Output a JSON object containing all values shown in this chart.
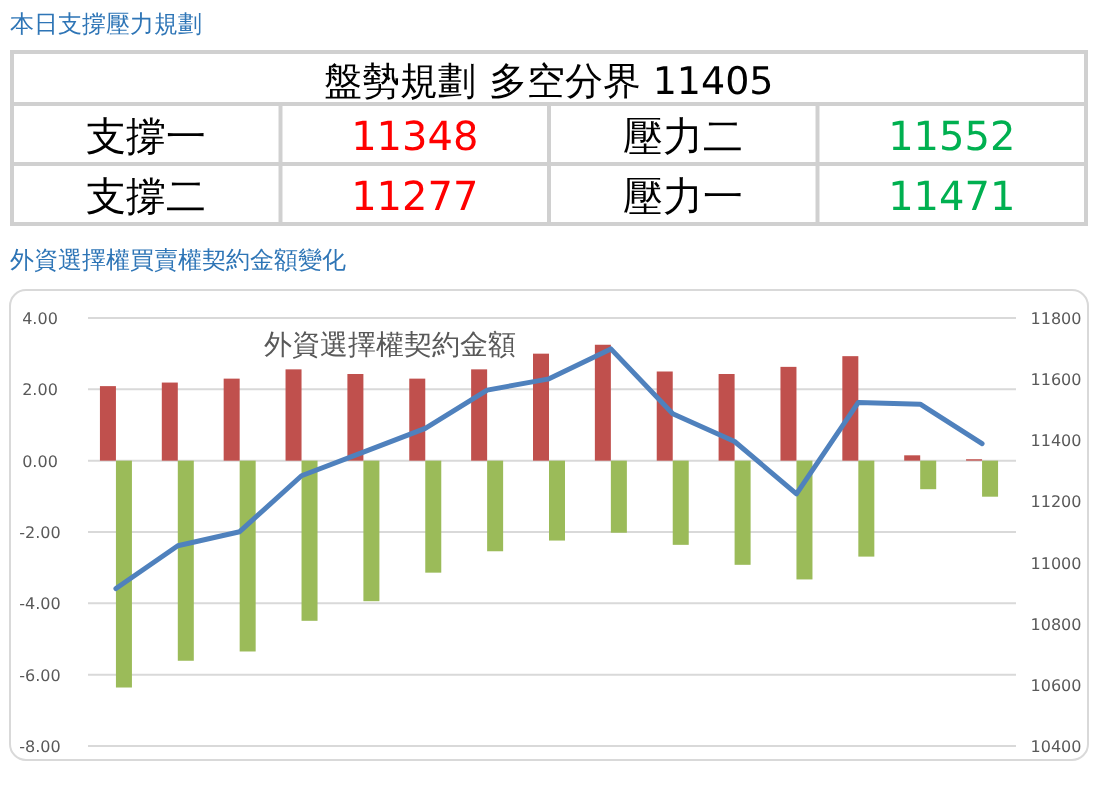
{
  "chart_data": [
    {
      "type": "other",
      "title": "本日支撐壓力規劃",
      "annotations": [
        "盤勢規劃 多空分界 11405",
        "支撐一",
        "11348",
        "壓力二",
        "11552",
        "支撐二",
        "11277",
        "壓力一",
        "11471"
      ]
    },
    {
      "type": "bar",
      "title": "外資選擇權買賣權契約金額變化",
      "subtitle": "外資選擇權契約金額",
      "categories": [
        null,
        null,
        null,
        null,
        null,
        null,
        null,
        null,
        null,
        null,
        null,
        null,
        null,
        null,
        null
      ],
      "series": [
        {
          "color": "#c0504d",
          "values": [
            2.09,
            2.19,
            2.3,
            2.56,
            2.43,
            2.3,
            2.56,
            3.0,
            3.25,
            2.5,
            2.43,
            2.63,
            2.93,
            0.15,
            0.04
          ]
        },
        {
          "color": "#9bbb59",
          "values": [
            -6.36,
            -5.61,
            -5.35,
            -4.49,
            -3.94,
            -3.14,
            -2.54,
            -2.24,
            -2.02,
            -2.36,
            -2.92,
            -3.33,
            -2.69,
            -0.8,
            -1.01
          ]
        },
        {
          "type": "line",
          "axis": "y2",
          "color": "#4f81bd",
          "values": [
            10915,
            11055,
            11101,
            11284,
            11361,
            11439,
            11564,
            11601,
            11699,
            11487,
            11396,
            11225,
            11524,
            11518,
            11389
          ]
        }
      ],
      "ylim": [
        -8,
        4
      ],
      "yticks": [
        {
          "value": 4,
          "label": "4.00"
        },
        {
          "value": 2,
          "label": "2.00"
        },
        {
          "value": 0,
          "label": "0.00"
        },
        {
          "value": -2,
          "label": "-2.00"
        },
        {
          "value": -4,
          "label": "-4.00"
        },
        {
          "value": -6,
          "label": "-6.00"
        },
        {
          "value": -8,
          "label": "-8.00"
        }
      ],
      "y2lim": [
        10400,
        11800
      ],
      "y2ticks": [
        10400,
        10600,
        10800,
        11000,
        11200,
        11400,
        11600,
        11800
      ],
      "grid": "y"
    }
  ]
}
